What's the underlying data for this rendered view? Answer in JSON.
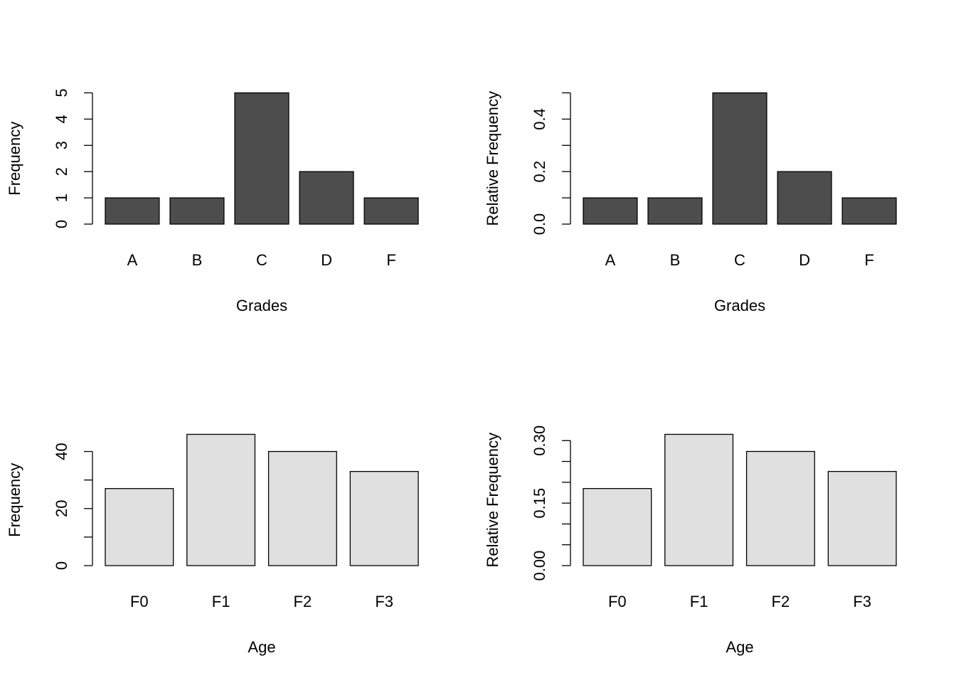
{
  "chart_data": [
    {
      "type": "bar",
      "xlabel": "Grades",
      "ylabel": "Frequency",
      "categories": [
        "A",
        "B",
        "C",
        "D",
        "F"
      ],
      "values": [
        1,
        1,
        5,
        2,
        1
      ],
      "color": "#4d4d4d",
      "ylim": [
        0,
        5
      ],
      "yticks": [
        0,
        1,
        2,
        3,
        4,
        5
      ],
      "yminorticks": []
    },
    {
      "type": "bar",
      "xlabel": "Grades",
      "ylabel": "Relative Frequency",
      "categories": [
        "A",
        "B",
        "C",
        "D",
        "F"
      ],
      "values": [
        0.1,
        0.1,
        0.5,
        0.2,
        0.1
      ],
      "color": "#4d4d4d",
      "ylim": [
        0,
        0.5
      ],
      "yticks": [
        {
          "value": 0,
          "label": "0.0"
        },
        {
          "value": 0.2,
          "label": "0.2"
        },
        {
          "value": 0.4,
          "label": "0.4"
        }
      ],
      "yminorticks": [
        0.1,
        0.3,
        0.5
      ]
    },
    {
      "type": "bar",
      "xlabel": "Age",
      "ylabel": "Frequency",
      "categories": [
        "F0",
        "F1",
        "F2",
        "F3"
      ],
      "values": [
        27,
        46,
        40,
        33
      ],
      "color": "#e0e0e0",
      "ylim": [
        0,
        46
      ],
      "yticks": [
        0,
        20,
        40
      ],
      "yminorticks": [
        10,
        30
      ]
    },
    {
      "type": "bar",
      "xlabel": "Age",
      "ylabel": "Relative Frequency",
      "categories": [
        "F0",
        "F1",
        "F2",
        "F3"
      ],
      "values": [
        0.185,
        0.315,
        0.274,
        0.226
      ],
      "color": "#e0e0e0",
      "ylim": [
        0,
        0.315
      ],
      "yticks": [
        {
          "value": 0,
          "label": "0.00"
        },
        {
          "value": 0.15,
          "label": "0.15"
        },
        {
          "value": 0.3,
          "label": "0.30"
        }
      ],
      "yminorticks": [
        0.05,
        0.1,
        0.2,
        0.25
      ]
    }
  ]
}
